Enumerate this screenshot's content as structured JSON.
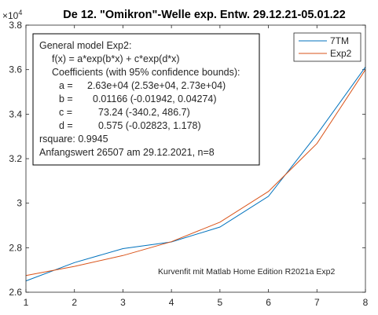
{
  "chart_data": {
    "type": "line",
    "title": "De 12. \"Omikron\"-Welle exp. Entw. 29.12.21-05.01.22",
    "exponent_label": "×10",
    "exponent_power": "4",
    "xlim": [
      1,
      8
    ],
    "ylim": [
      2.6,
      3.8
    ],
    "y_scale_factor": 10000,
    "x_ticks": [
      1,
      2,
      3,
      4,
      5,
      6,
      7,
      8
    ],
    "x_tick_labels": [
      "1",
      "2",
      "3",
      "4",
      "5",
      "6",
      "7",
      "8"
    ],
    "y_ticks": [
      2.6,
      2.8,
      3.0,
      3.2,
      3.4,
      3.6,
      3.8
    ],
    "y_tick_labels": [
      "2.6",
      "2.8",
      "3",
      "3.2",
      "3.4",
      "3.6",
      "3.8"
    ],
    "x": [
      1,
      2,
      3,
      4,
      5,
      6,
      7,
      8
    ],
    "series": [
      {
        "name": "7TM",
        "color": "#0072BD",
        "values": [
          2.651,
          2.733,
          2.796,
          2.826,
          2.893,
          3.031,
          3.309,
          3.612
        ]
      },
      {
        "name": "Exp2",
        "color": "#D95319",
        "values": [
          2.675,
          2.716,
          2.765,
          2.827,
          2.915,
          3.053,
          3.268,
          3.6
        ]
      }
    ],
    "legend_position": "top-right",
    "grid": false,
    "fit_box": {
      "lines": [
        "General model Exp2:",
        "f(x) = a*exp(b*x) + c*exp(d*x)",
        "Coefficients (with 95% confidence bounds):",
        "a =",
        "2.63e+04  (2.53e+04, 2.73e+04)",
        "b =",
        "0.01166  (-0.01942, 0.04274)",
        "c =",
        "73.24  (-340.2, 486.7)",
        "d =",
        "0.575  (-0.02823, 1.178)",
        "rsquare: 0.9945",
        "Anfangswert 26507 am 29.12.2021, n=8"
      ]
    },
    "annotation": "Kurvenfit mit Matlab Home Edition R2021a Exp2"
  }
}
